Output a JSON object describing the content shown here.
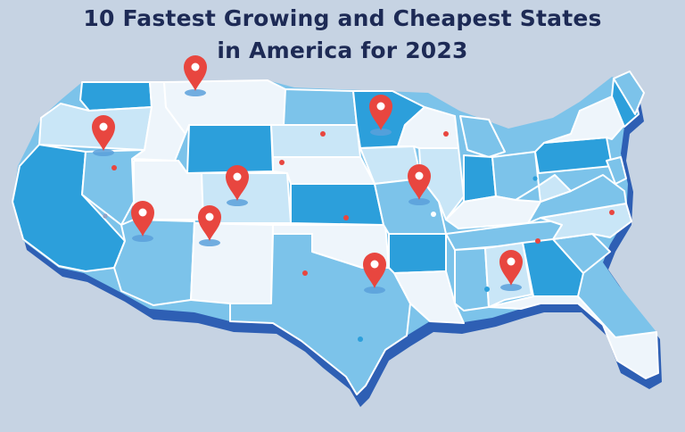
{
  "title": {
    "line1": "10 Fastest Growing and Cheapest States",
    "line2": "in America for 2023"
  },
  "map": {
    "pin_count": 9,
    "colors": {
      "background": "#c6d3e3",
      "title": "#1d2a55",
      "map_shadow": "#2e5fb4",
      "state_dark": "#2c9fdb",
      "state_medium": "#7cc3ea",
      "state_light": "#c9e6f7",
      "state_pale": "#eef5fb",
      "pin": "#e8463f"
    },
    "pin_icon": "map-pin-icon",
    "marker_icon": "dot-marker-icon"
  }
}
